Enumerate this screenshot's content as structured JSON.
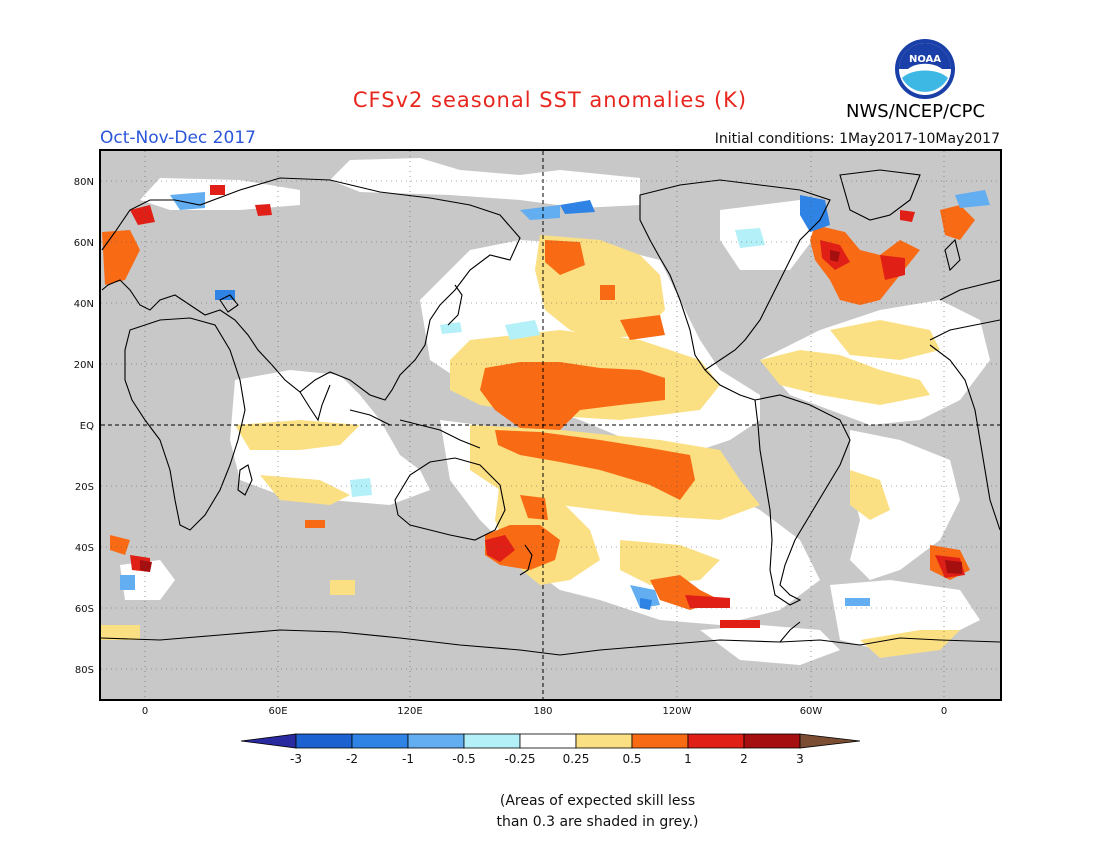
{
  "header": {
    "title": "CFSv2 seasonal SST anomalies (K)",
    "season": "Oct-Nov-Dec 2017",
    "initial_conditions": "Initial conditions: 1May2017-10May2017",
    "agency": "NWS/NCEP/CPC"
  },
  "logo": {
    "text": "NOAA"
  },
  "map": {
    "lat_labels": [
      "80N",
      "60N",
      "40N",
      "20N",
      "EQ",
      "20S",
      "40S",
      "60S",
      "80S"
    ],
    "lon_labels": [
      "0",
      "60E",
      "120E",
      "180",
      "120W",
      "60W",
      "0"
    ],
    "colors": {
      "land_grey": "#c8c8c8",
      "ocean_white": "#ffffff"
    }
  },
  "colorbar": {
    "tick_labels": [
      "-3",
      "-2",
      "-1",
      "-0.5",
      "-0.25",
      "0.25",
      "0.5",
      "1",
      "2",
      "3"
    ],
    "colors": [
      "#2a2aa0",
      "#1c62d0",
      "#2f83e4",
      "#62aef0",
      "#b4f0f8",
      "#ffffff",
      "#fbe083",
      "#f96a15",
      "#e02016",
      "#a50f0f",
      "#7b4e34"
    ]
  },
  "note": {
    "line1": "(Areas of expected skill less",
    "line2": "than 0.3 are shaded in grey.)"
  }
}
